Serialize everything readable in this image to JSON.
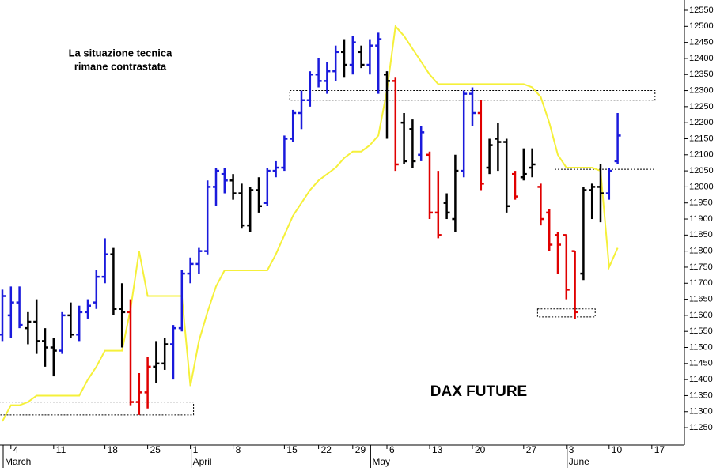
{
  "chart_data": {
    "type": "ohlc",
    "categories": [
      null,
      "4",
      null,
      null,
      null,
      null,
      "11",
      null,
      null,
      null,
      null,
      null,
      "18",
      null,
      null,
      null,
      null,
      "25",
      null,
      null,
      null,
      null,
      "1",
      null,
      null,
      null,
      null,
      "8",
      null,
      null,
      null,
      null,
      null,
      "15",
      null,
      null,
      null,
      "22",
      null,
      null,
      null,
      "29",
      null,
      null,
      null,
      "6",
      null,
      null,
      null,
      null,
      "13",
      null,
      null,
      null,
      null,
      "20",
      null,
      null,
      null,
      null,
      null,
      "27",
      null,
      null,
      null,
      null,
      "3",
      null,
      null,
      null,
      null,
      "10",
      null,
      null,
      null,
      null,
      "17"
    ],
    "month_labels": [
      "March",
      null,
      null,
      null,
      null,
      null,
      null,
      null,
      null,
      null,
      null,
      null,
      null,
      null,
      null,
      null,
      null,
      null,
      null,
      null,
      null,
      null,
      "April",
      null,
      null,
      null,
      null,
      null,
      null,
      null,
      null,
      null,
      null,
      null,
      null,
      null,
      null,
      null,
      null,
      null,
      null,
      null,
      null,
      "May",
      null,
      null,
      null,
      null,
      null,
      null,
      null,
      null,
      null,
      null,
      null,
      null,
      null,
      null,
      null,
      null,
      null,
      null,
      null,
      null,
      null,
      null,
      "June",
      null,
      null,
      null,
      null,
      null,
      null,
      null,
      null,
      null,
      null
    ],
    "ohlc": {
      "open": [
        11540,
        11600,
        11640,
        11560,
        11580,
        11520,
        11500,
        11490,
        11600,
        11540,
        11610,
        11640,
        11720,
        11790,
        11620,
        11610,
        11330,
        11360,
        11440,
        11450,
        11510,
        11560,
        11730,
        11760,
        11800,
        12000,
        12040,
        12020,
        11980,
        11880,
        11990,
        11950,
        12050,
        12060,
        12150,
        12230,
        12270,
        12350,
        12330,
        12360,
        12420,
        12380,
        12420,
        12380,
        12440,
        12350,
        12330,
        12200,
        12180,
        12100,
        12100,
        11920,
        11950,
        11900,
        12050,
        12290,
        12230,
        12060,
        12150,
        12140,
        12040,
        12030,
        12060,
        12000,
        11920,
        11850,
        11850,
        11800,
        11730,
        11990,
        12000,
        11980,
        12080,
        null,
        null,
        null,
        null
      ],
      "high": [
        11680,
        11690,
        11690,
        11610,
        11650,
        11560,
        11530,
        11610,
        11640,
        11630,
        11650,
        11740,
        11840,
        11810,
        11700,
        11650,
        11420,
        11470,
        11520,
        11530,
        11570,
        11740,
        11780,
        11810,
        12020,
        12060,
        12060,
        12040,
        12010,
        12000,
        12030,
        12060,
        12080,
        12160,
        12240,
        12300,
        12360,
        12400,
        12390,
        12440,
        12460,
        12470,
        12440,
        12460,
        12480,
        12360,
        12340,
        12230,
        12210,
        12190,
        12110,
        12050,
        11980,
        12100,
        12300,
        12310,
        12270,
        12150,
        12200,
        12150,
        12050,
        12120,
        12120,
        12010,
        11930,
        11860,
        11850,
        11800,
        12000,
        12010,
        12070,
        12060,
        12230,
        null,
        null,
        null,
        null
      ],
      "low": [
        11520,
        11530,
        11560,
        11510,
        11480,
        11440,
        11410,
        11480,
        11530,
        11520,
        11590,
        11620,
        11700,
        11600,
        11500,
        11320,
        11290,
        11310,
        11390,
        11430,
        11400,
        11550,
        11700,
        11730,
        11790,
        11940,
        11980,
        11960,
        11870,
        11860,
        11920,
        11940,
        12030,
        12050,
        12140,
        12180,
        12250,
        12310,
        12290,
        12330,
        12340,
        12350,
        12370,
        12350,
        12290,
        12150,
        12050,
        12070,
        12060,
        12080,
        11900,
        11840,
        11900,
        11860,
        12030,
        12190,
        11990,
        12040,
        12050,
        11920,
        11960,
        12020,
        12030,
        11880,
        11800,
        11730,
        11650,
        11590,
        11710,
        11900,
        11890,
        11960,
        12070,
        null,
        null,
        null,
        null
      ],
      "close": [
        11660,
        11640,
        11570,
        11580,
        11520,
        11500,
        11490,
        11600,
        11540,
        11610,
        11630,
        11720,
        11790,
        11620,
        11610,
        11330,
        11360,
        11440,
        11450,
        11510,
        11560,
        11730,
        11760,
        11800,
        12000,
        12050,
        12020,
        11980,
        11880,
        11990,
        11940,
        12050,
        12060,
        12150,
        12230,
        12270,
        12350,
        12330,
        12360,
        12420,
        12380,
        12450,
        12380,
        12440,
        12460,
        12330,
        12070,
        12080,
        12080,
        12170,
        11920,
        11850,
        11920,
        12050,
        12290,
        12230,
        12010,
        12130,
        12140,
        11940,
        11970,
        12040,
        12070,
        11900,
        11820,
        11820,
        11680,
        11610,
        11990,
        12000,
        11980,
        12050,
        12160,
        null,
        null,
        null,
        null
      ],
      "colors": [
        "#1a1adc",
        "#1a1adc",
        "#1a1adc",
        "#000000",
        "#000000",
        "#000000",
        "#000000",
        "#1a1adc",
        "#000000",
        "#1a1adc",
        "#1a1adc",
        "#1a1adc",
        "#1a1adc",
        "#000000",
        "#000000",
        "#e00000",
        "#e00000",
        "#e00000",
        "#000000",
        "#000000",
        "#1a1adc",
        "#1a1adc",
        "#1a1adc",
        "#1a1adc",
        "#1a1adc",
        "#1a1adc",
        "#1a1adc",
        "#000000",
        "#000000",
        "#000000",
        "#000000",
        "#1a1adc",
        "#1a1adc",
        "#1a1adc",
        "#1a1adc",
        "#1a1adc",
        "#1a1adc",
        "#1a1adc",
        "#1a1adc",
        "#1a1adc",
        "#000000",
        "#1a1adc",
        "#000000",
        "#1a1adc",
        "#1a1adc",
        "#000000",
        "#e00000",
        "#000000",
        "#000000",
        "#1a1adc",
        "#e00000",
        "#e00000",
        "#000000",
        "#000000",
        "#1a1adc",
        "#1a1adc",
        "#e00000",
        "#000000",
        "#000000",
        "#000000",
        "#e00000",
        "#000000",
        "#000000",
        "#e00000",
        "#e00000",
        "#e00000",
        "#e00000",
        "#e00000",
        "#000000",
        "#000000",
        "#000000",
        "#1a1adc",
        "#1a1adc",
        null,
        null,
        null,
        null
      ]
    },
    "line": {
      "color": "#f5f03a",
      "values": [
        11270,
        11320,
        11320,
        11330,
        11350,
        11350,
        11350,
        11350,
        11350,
        11350,
        11400,
        11440,
        11490,
        11490,
        11490,
        11620,
        11800,
        11660,
        11660,
        11660,
        11660,
        11660,
        11380,
        11520,
        11610,
        11690,
        11740,
        11740,
        11740,
        11740,
        11740,
        11740,
        11790,
        11850,
        11910,
        11950,
        11990,
        12020,
        12040,
        12060,
        12090,
        12110,
        12110,
        12130,
        12160,
        12300,
        12500,
        12470,
        12430,
        12390,
        12350,
        12320,
        12320,
        12320,
        12320,
        12320,
        12320,
        12320,
        12320,
        12320,
        12320,
        12320,
        12310,
        12280,
        12200,
        12100,
        12060,
        12060,
        12060,
        12060,
        12050,
        11750,
        11810,
        null,
        null,
        null,
        null
      ]
    },
    "zones": [
      {
        "x_from": 0,
        "x_to": 22,
        "low": 11290,
        "high": 11330
      },
      {
        "x_from": 34,
        "x_to": 76,
        "low": 12270,
        "high": 12300
      },
      {
        "x_from": 63,
        "x_to": 69,
        "low": 11595,
        "high": 11620
      },
      {
        "x_from": 65,
        "x_to": 76,
        "low": 12055,
        "high": 12055
      }
    ],
    "annotations": [
      "La situazione tecnica",
      "rimane contrastata",
      "DAX FUTURE"
    ],
    "ylim": [
      11196,
      12582
    ],
    "yticks": [
      11250,
      11300,
      11350,
      11400,
      11450,
      11500,
      11550,
      11600,
      11650,
      11700,
      11750,
      11800,
      11850,
      11900,
      11950,
      12000,
      12050,
      12100,
      12150,
      12200,
      12250,
      12300,
      12350,
      12400,
      12450,
      12500,
      12550
    ]
  }
}
